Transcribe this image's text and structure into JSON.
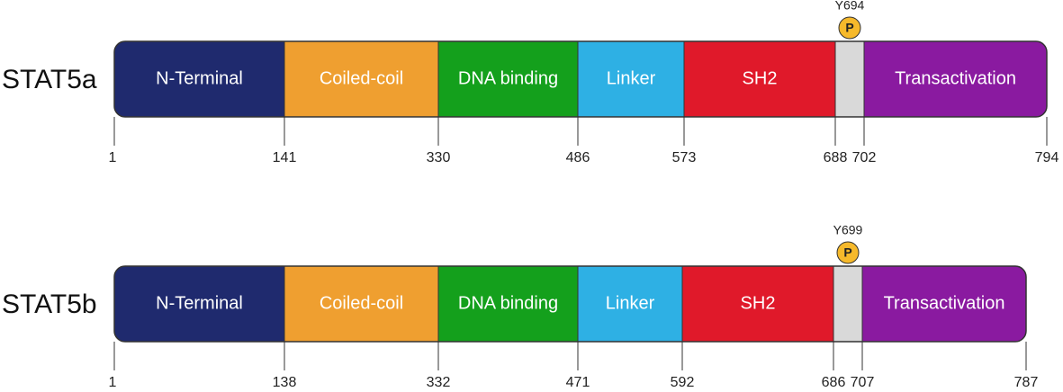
{
  "proteins": [
    {
      "name": "STAT5a",
      "site": "Y694",
      "phospho": "P",
      "domains": [
        "N-Terminal",
        "Coiled-coil",
        "DNA binding",
        "Linker",
        "SH2",
        "Transactivation"
      ],
      "positions": [
        1,
        141,
        330,
        486,
        573,
        688,
        702,
        794
      ]
    },
    {
      "name": "STAT5b",
      "site": "Y699",
      "phospho": "P",
      "domains": [
        "N-Terminal",
        "Coiled-coil",
        "DNA binding",
        "Linker",
        "SH2",
        "Transactivation"
      ],
      "positions": [
        1,
        138,
        332,
        471,
        592,
        686,
        707,
        787
      ]
    }
  ]
}
